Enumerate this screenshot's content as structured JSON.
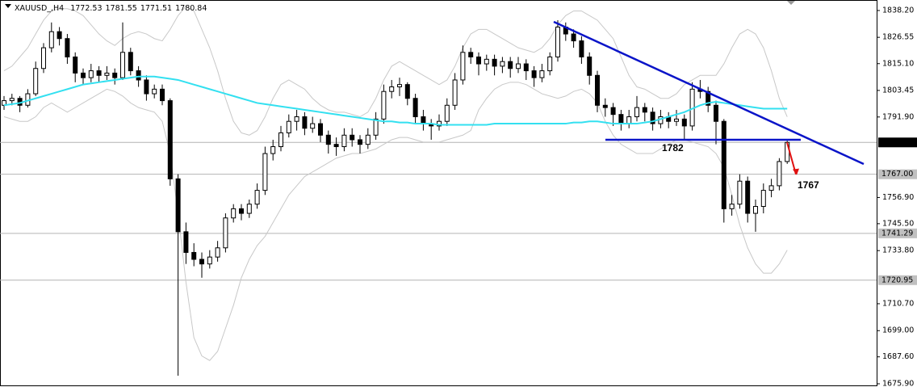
{
  "chart_data": {
    "type": "candlestick",
    "title": "XAUUSD_,H4",
    "candles": [
      [
        1797,
        1801,
        1795,
        1799
      ],
      [
        1799,
        1802,
        1797,
        1800
      ],
      [
        1800,
        1801,
        1794,
        1797
      ],
      [
        1797,
        1804,
        1796,
        1802
      ],
      [
        1802,
        1816,
        1801,
        1813
      ],
      [
        1813,
        1824,
        1811,
        1822
      ],
      [
        1822,
        1833,
        1820,
        1829
      ],
      [
        1829,
        1831,
        1823,
        1826
      ],
      [
        1826,
        1828,
        1815,
        1818
      ],
      [
        1818,
        1820,
        1807,
        1811
      ],
      [
        1811,
        1813,
        1806,
        1809
      ],
      [
        1809,
        1815,
        1807,
        1812
      ],
      [
        1812,
        1814,
        1807,
        1810
      ],
      [
        1810,
        1814,
        1808,
        1811
      ],
      [
        1811,
        1813,
        1806,
        1809
      ],
      [
        1809,
        1833,
        1808,
        1820
      ],
      [
        1820,
        1822,
        1810,
        1812
      ],
      [
        1812,
        1814,
        1805,
        1808
      ],
      [
        1808,
        1810,
        1799,
        1802
      ],
      [
        1802,
        1806,
        1800,
        1804
      ],
      [
        1804,
        1806,
        1797,
        1799
      ],
      [
        1799,
        1800,
        1762,
        1765
      ],
      [
        1765,
        1767,
        1679.4,
        1742
      ],
      [
        1742,
        1746,
        1728,
        1733
      ],
      [
        1733,
        1737,
        1727,
        1730
      ],
      [
        1730,
        1733,
        1722,
        1728
      ],
      [
        1728,
        1734,
        1726,
        1731
      ],
      [
        1731,
        1738,
        1729,
        1735
      ],
      [
        1735,
        1750,
        1733,
        1748
      ],
      [
        1748,
        1754,
        1746,
        1752
      ],
      [
        1752,
        1754,
        1747,
        1750
      ],
      [
        1750,
        1756,
        1748,
        1754
      ],
      [
        1754,
        1763,
        1752,
        1760
      ],
      [
        1760,
        1779,
        1758,
        1776
      ],
      [
        1776,
        1782,
        1773,
        1779
      ],
      [
        1779,
        1788,
        1777,
        1785
      ],
      [
        1785,
        1793,
        1783,
        1790
      ],
      [
        1790,
        1795,
        1786,
        1792
      ],
      [
        1792,
        1794,
        1784,
        1787
      ],
      [
        1787,
        1792,
        1785,
        1789
      ],
      [
        1789,
        1791,
        1781,
        1784
      ],
      [
        1784,
        1786,
        1776,
        1780
      ],
      [
        1780,
        1783,
        1775,
        1779
      ],
      [
        1779,
        1787,
        1777,
        1784
      ],
      [
        1784,
        1787,
        1779,
        1782
      ],
      [
        1782,
        1784,
        1776,
        1780
      ],
      [
        1780,
        1787,
        1778,
        1784
      ],
      [
        1784,
        1794,
        1782,
        1791
      ],
      [
        1791,
        1806,
        1789,
        1803
      ],
      [
        1803,
        1808,
        1800,
        1805
      ],
      [
        1805,
        1809,
        1801,
        1806
      ],
      [
        1806,
        1807,
        1797,
        1800
      ],
      [
        1800,
        1802,
        1789,
        1792
      ],
      [
        1792,
        1795,
        1786,
        1789
      ],
      [
        1789,
        1791,
        1782,
        1788
      ],
      [
        1788,
        1793,
        1786,
        1790
      ],
      [
        1790,
        1800,
        1788,
        1797
      ],
      [
        1797,
        1811,
        1795,
        1808
      ],
      [
        1808,
        1823,
        1806,
        1820
      ],
      [
        1820,
        1822,
        1815,
        1818
      ],
      [
        1818,
        1820,
        1810,
        1815
      ],
      [
        1815,
        1819,
        1812,
        1817
      ],
      [
        1817,
        1819,
        1810,
        1814
      ],
      [
        1814,
        1818,
        1811,
        1816
      ],
      [
        1816,
        1818,
        1809,
        1813
      ],
      [
        1813,
        1818,
        1811,
        1815
      ],
      [
        1815,
        1817,
        1808,
        1812
      ],
      [
        1812,
        1814,
        1805,
        1809
      ],
      [
        1809,
        1815,
        1807,
        1812
      ],
      [
        1812,
        1820,
        1810,
        1818
      ],
      [
        1818,
        1834,
        1816,
        1831
      ],
      [
        1831,
        1833,
        1825,
        1828
      ],
      [
        1828,
        1830,
        1822,
        1825
      ],
      [
        1825,
        1827,
        1815,
        1818
      ],
      [
        1818,
        1820,
        1806,
        1810
      ],
      [
        1810,
        1812,
        1794,
        1797
      ],
      [
        1797,
        1800,
        1792,
        1796
      ],
      [
        1796,
        1798,
        1788,
        1793
      ],
      [
        1793,
        1795,
        1786,
        1789
      ],
      [
        1789,
        1795,
        1787,
        1792
      ],
      [
        1792,
        1801,
        1790,
        1796
      ],
      [
        1796,
        1798,
        1790,
        1794
      ],
      [
        1794,
        1796,
        1786,
        1789
      ],
      [
        1789,
        1795,
        1787,
        1792
      ],
      [
        1792,
        1794,
        1787,
        1790
      ],
      [
        1790,
        1795,
        1788,
        1791
      ],
      [
        1791,
        1793,
        1782,
        1788
      ],
      [
        1788,
        1807,
        1786,
        1804
      ],
      [
        1804,
        1808,
        1800,
        1803
      ],
      [
        1803,
        1805,
        1794,
        1797
      ],
      [
        1797,
        1799,
        1780,
        1790
      ],
      [
        1790,
        1791,
        1746,
        1752
      ],
      [
        1752,
        1758,
        1749,
        1754
      ],
      [
        1754,
        1767,
        1752,
        1764
      ],
      [
        1764,
        1766,
        1746,
        1750
      ],
      [
        1750,
        1756,
        1742,
        1753
      ],
      [
        1753,
        1763,
        1750,
        1760
      ],
      [
        1760,
        1765,
        1757,
        1762
      ],
      [
        1762,
        1774,
        1760,
        1772.53
      ],
      [
        1772.53,
        1781.55,
        1771.51,
        1780.84
      ]
    ],
    "moving_average": {
      "color": "#33e0f0",
      "values": [
        1797,
        1797.5,
        1798,
        1799,
        1800,
        1801,
        1802,
        1803,
        1804,
        1805,
        1806,
        1806.5,
        1807,
        1807.5,
        1808,
        1808.5,
        1809,
        1809.5,
        1809.5,
        1809.5,
        1809,
        1808.5,
        1808,
        1807,
        1806,
        1805,
        1804,
        1803,
        1802,
        1801,
        1800,
        1799,
        1798,
        1797.5,
        1797,
        1796.5,
        1796,
        1795.5,
        1795,
        1794.5,
        1794,
        1793.5,
        1793,
        1792.5,
        1792,
        1791.5,
        1791,
        1790.5,
        1790,
        1790,
        1789.5,
        1789.5,
        1789,
        1789,
        1789,
        1788.5,
        1788.5,
        1788.5,
        1788.5,
        1788.5,
        1788.5,
        1788.5,
        1789,
        1789,
        1789,
        1789,
        1789,
        1789,
        1789,
        1789,
        1789,
        1789,
        1789.5,
        1789.5,
        1790,
        1790,
        1789.5,
        1789,
        1789,
        1789,
        1789,
        1789.5,
        1790,
        1791,
        1792,
        1793,
        1794,
        1795.5,
        1797,
        1798,
        1798.5,
        1798,
        1797.5,
        1797,
        1796.5,
        1796,
        1795.5,
        1795.5,
        1795.5,
        1795.5
      ]
    },
    "bands": {
      "color": "#c8c8c8",
      "upper": [
        1812,
        1814,
        1818,
        1822,
        1828,
        1834,
        1838,
        1839,
        1839,
        1838,
        1836,
        1832,
        1828,
        1825,
        1823,
        1826,
        1828,
        1829,
        1828,
        1826,
        1825,
        1830,
        1836,
        1840,
        1838,
        1830,
        1822,
        1812,
        1800,
        1790,
        1785,
        1784,
        1786,
        1792,
        1800,
        1806,
        1808,
        1806,
        1804,
        1800,
        1797,
        1795,
        1794,
        1794,
        1793,
        1792,
        1794,
        1800,
        1808,
        1814,
        1816,
        1814,
        1812,
        1810,
        1808,
        1806,
        1808,
        1814,
        1822,
        1828,
        1830,
        1830,
        1828,
        1826,
        1824,
        1822,
        1821,
        1820,
        1822,
        1826,
        1832,
        1836,
        1838,
        1838,
        1836,
        1834,
        1830,
        1826,
        1818,
        1810,
        1805,
        1804,
        1802,
        1800,
        1800,
        1802,
        1806,
        1808,
        1810,
        1810,
        1810,
        1815,
        1822,
        1828,
        1830,
        1828,
        1822,
        1812,
        1800,
        1792
      ],
      "lower": [
        1792,
        1791,
        1790,
        1790,
        1792,
        1796,
        1798,
        1796,
        1794,
        1796,
        1798,
        1800,
        1802,
        1804,
        1803,
        1801,
        1798,
        1796,
        1795,
        1794,
        1790,
        1776,
        1750,
        1720,
        1696,
        1688,
        1686,
        1690,
        1700,
        1710,
        1722,
        1730,
        1736,
        1740,
        1746,
        1752,
        1758,
        1762,
        1766,
        1768,
        1770,
        1772,
        1774,
        1775,
        1776,
        1776,
        1777,
        1778,
        1780,
        1782,
        1783,
        1783,
        1782,
        1781,
        1781,
        1781,
        1782,
        1783,
        1784,
        1786,
        1795,
        1800,
        1804,
        1806,
        1807,
        1807,
        1806,
        1804,
        1802,
        1801,
        1800,
        1801,
        1803,
        1804,
        1802,
        1798,
        1790,
        1784,
        1780,
        1778,
        1776,
        1776,
        1776,
        1778,
        1780,
        1782,
        1782,
        1781,
        1780,
        1779,
        1776,
        1770,
        1758,
        1745,
        1735,
        1728,
        1724,
        1724,
        1728,
        1734
      ]
    },
    "ylim": [
      1674.49,
      1842.77
    ],
    "yticks": [
      {
        "value": 1838.2,
        "label": "1838.20"
      },
      1826.55,
      {
        "value": 1815.1,
        "label": "1815.10"
      },
      1803.45,
      {
        "value": 1791.9,
        "label": "1791.90"
      },
      {
        "value": 1756.9,
        "label": "1756.90"
      },
      {
        "value": 1745.5,
        "label": "1745.50"
      },
      {
        "value": 1733.8,
        "label": "1733.80"
      },
      {
        "value": 1710.7,
        "label": "1710.70"
      },
      {
        "value": 1699,
        "label": "1699.00"
      },
      {
        "value": 1687.6,
        "label": "1687.60"
      },
      {
        "value": 1675.9,
        "label": "1675.90"
      }
    ],
    "price_lines": [
      1780.84,
      {
        "value": 1767,
        "label": "1767.00"
      },
      1741.29,
      1720.95
    ],
    "annotations": [
      1782,
      1767
    ],
    "annotation_color": "#e01010",
    "level_color": "#0a14c8"
  }
}
